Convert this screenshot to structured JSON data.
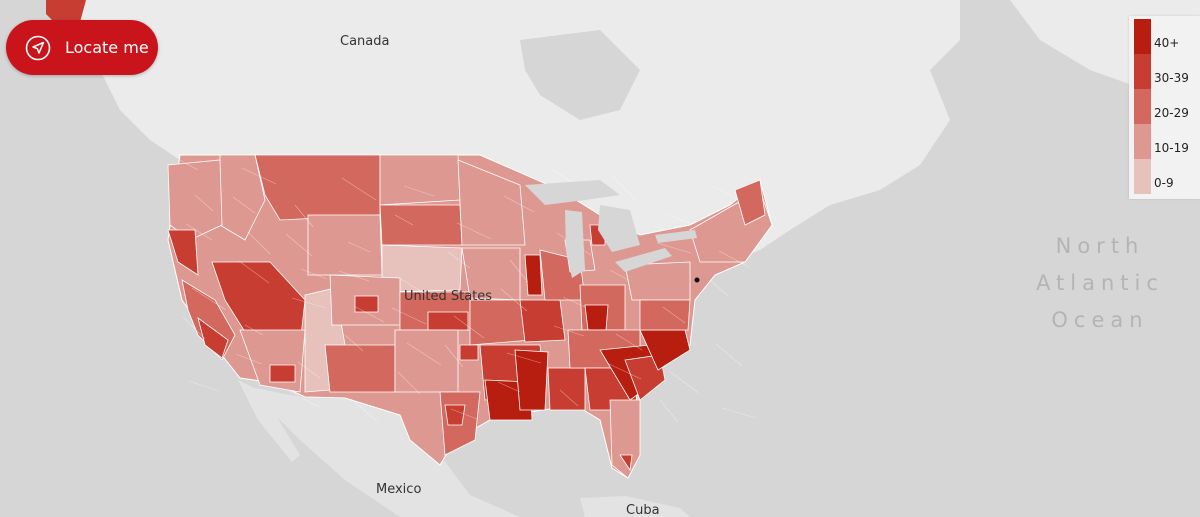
{
  "button": {
    "label": "Locate me",
    "icon": "navigation-arrow-icon",
    "color": "#c9141b"
  },
  "labels": {
    "canada": "Canada",
    "us": "United States",
    "mexico": "Mexico",
    "cuba": "Cuba",
    "ocean": "North Atlantic Ocean"
  },
  "legend": {
    "items": [
      {
        "label": "40+",
        "color": "#b81e10"
      },
      {
        "label": "30-39",
        "color": "#c83d31"
      },
      {
        "label": "20-29",
        "color": "#d2685e"
      },
      {
        "label": "10-19",
        "color": "#dd9891"
      },
      {
        "label": "0-9",
        "color": "#e7c1bc"
      }
    ]
  },
  "colors": {
    "water": "#d6d6d6",
    "land": "#ebebeb",
    "border": "#ffffff"
  }
}
